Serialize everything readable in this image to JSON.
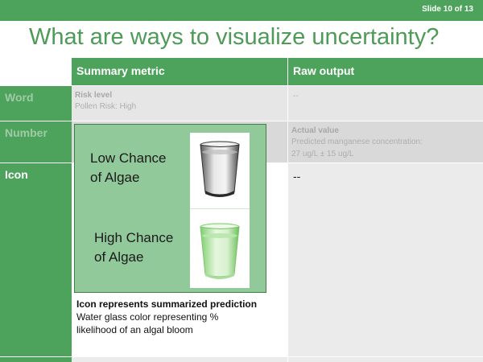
{
  "slide": {
    "number_label": "Slide 10 of 13"
  },
  "title": "What are ways to visualize uncertainty?",
  "table": {
    "headers": [
      "Summary metric",
      "Raw output"
    ],
    "rows": {
      "word": {
        "label": "Word",
        "summary_title": "Risk level",
        "summary_text": "Pollen Risk: High",
        "raw": "--"
      },
      "number": {
        "label": "Number",
        "raw_title": "Actual value",
        "raw_line1": "Predicted manganese concentration:",
        "raw_line2": "27 ug/L ± 15 ug/L"
      },
      "icon": {
        "label": "Icon",
        "raw": "--"
      }
    }
  },
  "overlay": {
    "low_line1": "Low Chance",
    "low_line2": "of Algae",
    "high_line1": "High Chance",
    "high_line2": "of Algae",
    "low_glass_icon": "clear-water-glass-icon",
    "high_glass_icon": "green-water-glass-icon"
  },
  "caption": {
    "title": "Icon represents summarized prediction",
    "line1": "Water glass color representing %",
    "line2": "likelihood of an algal bloom"
  },
  "colors": {
    "accent_green": "#4ea35c",
    "title_green": "#4e9a57",
    "overlay_green": "#92c99b",
    "algae_green": "#b8e6ad"
  }
}
